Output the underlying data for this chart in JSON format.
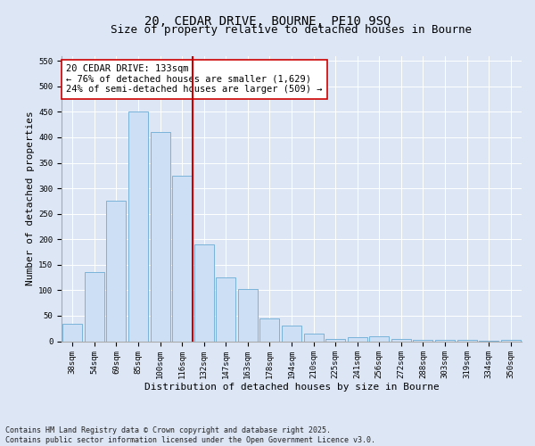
{
  "title": "20, CEDAR DRIVE, BOURNE, PE10 9SQ",
  "subtitle": "Size of property relative to detached houses in Bourne",
  "xlabel": "Distribution of detached houses by size in Bourne",
  "ylabel": "Number of detached properties",
  "categories": [
    "38sqm",
    "54sqm",
    "69sqm",
    "85sqm",
    "100sqm",
    "116sqm",
    "132sqm",
    "147sqm",
    "163sqm",
    "178sqm",
    "194sqm",
    "210sqm",
    "225sqm",
    "241sqm",
    "256sqm",
    "272sqm",
    "288sqm",
    "303sqm",
    "319sqm",
    "334sqm",
    "350sqm"
  ],
  "values": [
    35,
    135,
    275,
    450,
    410,
    325,
    190,
    125,
    103,
    45,
    30,
    15,
    5,
    8,
    10,
    4,
    3,
    2,
    3,
    1,
    3
  ],
  "bar_color": "#ccdff5",
  "bar_edge_color": "#6aaad4",
  "vline_x_index": 6,
  "vline_color": "#cc0000",
  "annotation_text": "20 CEDAR DRIVE: 133sqm\n← 76% of detached houses are smaller (1,629)\n24% of semi-detached houses are larger (509) →",
  "annotation_box_color": "#ffffff",
  "annotation_box_edge_color": "#cc0000",
  "ylim": [
    0,
    560
  ],
  "yticks": [
    0,
    50,
    100,
    150,
    200,
    250,
    300,
    350,
    400,
    450,
    500,
    550
  ],
  "background_color": "#dce6f5",
  "plot_bg_color": "#dce6f5",
  "footer": "Contains HM Land Registry data © Crown copyright and database right 2025.\nContains public sector information licensed under the Open Government Licence v3.0.",
  "title_fontsize": 10,
  "subtitle_fontsize": 9,
  "xlabel_fontsize": 8,
  "ylabel_fontsize": 8,
  "tick_fontsize": 6.5,
  "annotation_fontsize": 7.5,
  "footer_fontsize": 6
}
